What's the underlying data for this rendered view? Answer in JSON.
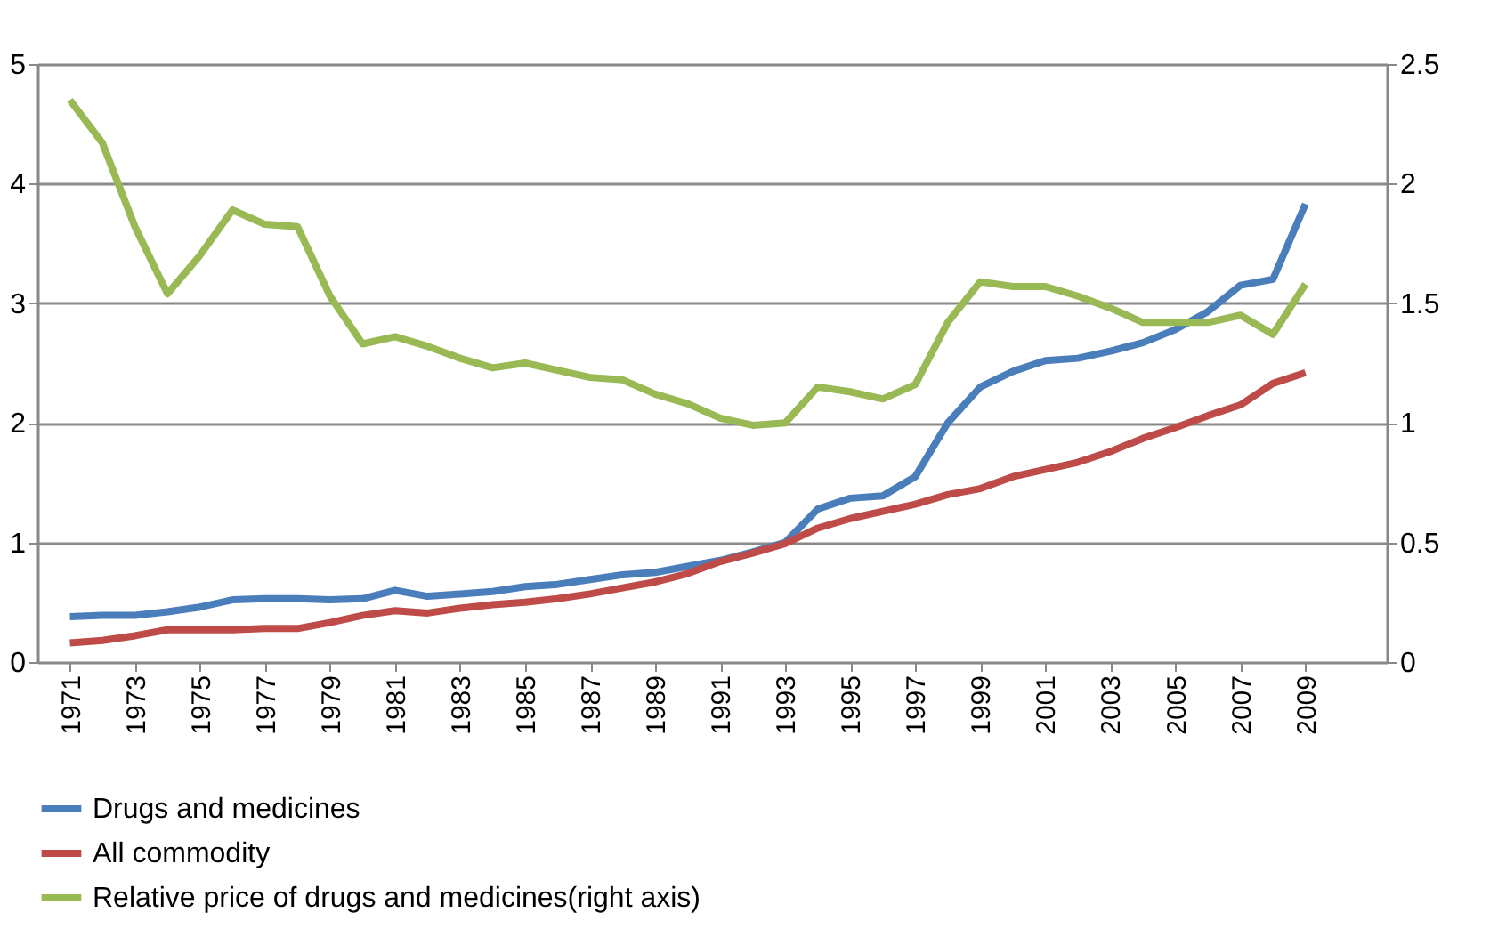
{
  "chart_data": {
    "type": "line",
    "x": [
      1971,
      1972,
      1973,
      1974,
      1975,
      1976,
      1977,
      1978,
      1979,
      1980,
      1981,
      1982,
      1983,
      1984,
      1985,
      1986,
      1987,
      1988,
      1989,
      1990,
      1991,
      1992,
      1993,
      1994,
      1995,
      1996,
      1997,
      1998,
      1999,
      2000,
      2001,
      2002,
      2003,
      2004,
      2005,
      2006,
      2007,
      2008,
      2009
    ],
    "xlim": [
      1970,
      2011.5
    ],
    "xticks": [
      1971,
      1973,
      1975,
      1977,
      1979,
      1981,
      1983,
      1985,
      1987,
      1989,
      1991,
      1993,
      1995,
      1997,
      1999,
      2001,
      2003,
      2005,
      2007,
      2009
    ],
    "ylim": [
      0,
      5
    ],
    "yticks": [
      0,
      1,
      2,
      3,
      4,
      5
    ],
    "y2lim": [
      0,
      2.5
    ],
    "y2ticks": [
      0,
      0.5,
      1,
      1.5,
      2,
      2.5
    ],
    "grid": "y",
    "legend": "bottom",
    "marker": "none",
    "line_style": "solid",
    "series": [
      {
        "name": "Drugs and medicines",
        "color": "#4a7ebb",
        "values": [
          0.38,
          0.39,
          0.39,
          0.42,
          0.46,
          0.52,
          0.53,
          0.53,
          0.52,
          0.53,
          0.6,
          0.55,
          0.57,
          0.59,
          0.63,
          0.65,
          0.69,
          0.73,
          0.75,
          0.8,
          0.85,
          0.92,
          1.0,
          1.28,
          1.37,
          1.39,
          1.55,
          2.0,
          2.3,
          2.43,
          2.52,
          2.54,
          2.6,
          2.67,
          2.78,
          2.93,
          3.15,
          3.2,
          3.83
        ]
      },
      {
        "name": "All commodity",
        "color": "#be4b48",
        "values": [
          0.16,
          0.18,
          0.22,
          0.27,
          0.27,
          0.27,
          0.28,
          0.28,
          0.33,
          0.39,
          0.43,
          0.41,
          0.45,
          0.48,
          0.5,
          0.53,
          0.57,
          0.62,
          0.67,
          0.74,
          0.84,
          0.91,
          0.99,
          1.12,
          1.2,
          1.26,
          1.32,
          1.4,
          1.45,
          1.55,
          1.61,
          1.67,
          1.76,
          1.87,
          1.96,
          2.06,
          2.15,
          2.33,
          2.42
        ]
      },
      {
        "name": "Relative price of drugs and medicines(right axis)",
        "color": "#98b954",
        "axis": "y2",
        "values": [
          2.35,
          2.17,
          1.82,
          1.54,
          1.7,
          1.89,
          1.83,
          1.82,
          1.53,
          1.33,
          1.36,
          1.32,
          1.27,
          1.23,
          1.25,
          1.22,
          1.19,
          1.18,
          1.12,
          1.08,
          1.02,
          0.99,
          1.0,
          1.15,
          1.13,
          1.1,
          1.16,
          1.42,
          1.59,
          1.57,
          1.57,
          1.53,
          1.48,
          1.42,
          1.42,
          1.42,
          1.45,
          1.37,
          1.58
        ]
      }
    ]
  }
}
